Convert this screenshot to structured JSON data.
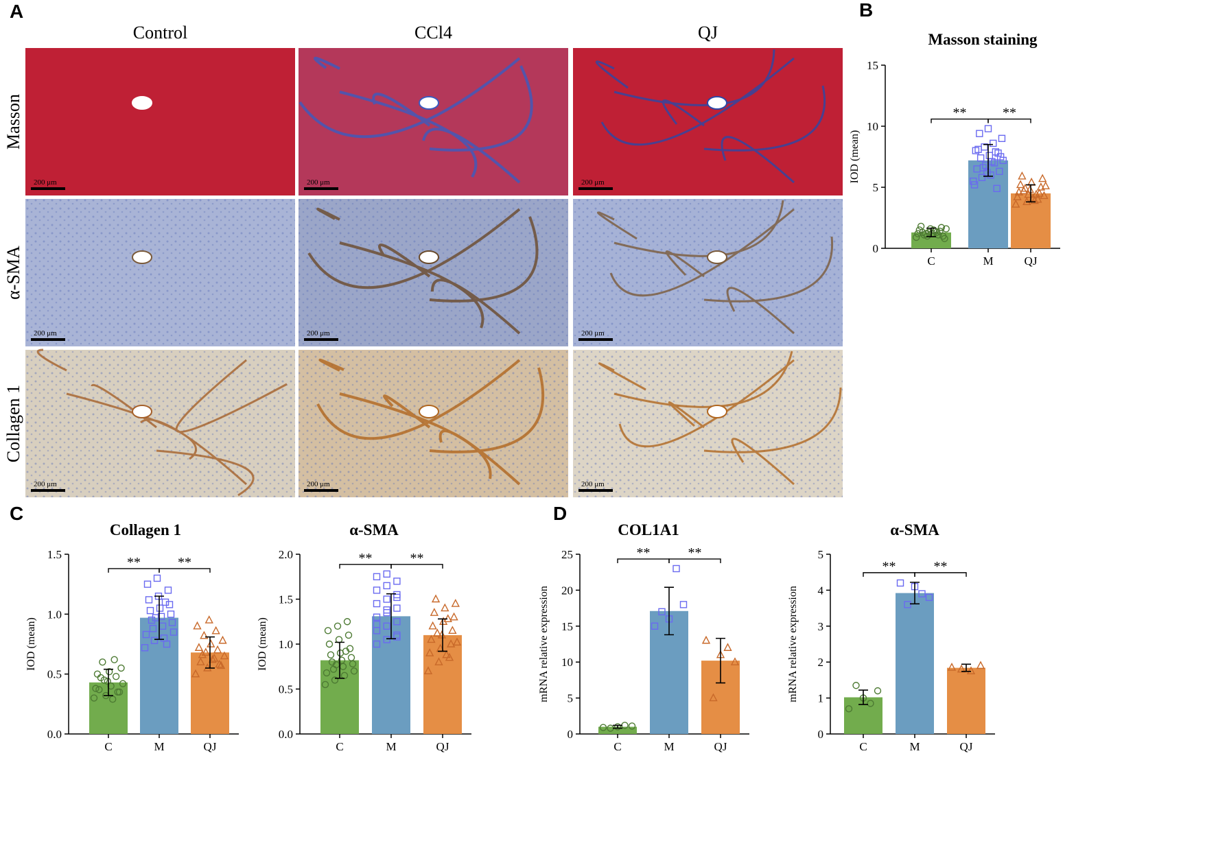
{
  "panel_labels": [
    "A",
    "B",
    "C",
    "D"
  ],
  "panel_a": {
    "columns": [
      "Control",
      "CCl4",
      "QJ"
    ],
    "rows": [
      "Masson",
      "α-SMA",
      "Collagen 1"
    ],
    "scale_bar": "200 μm"
  },
  "chart_data": [
    {
      "type": "bar",
      "title": "Masson staining",
      "y_label": "IOD (mean)",
      "categories": [
        "C",
        "M",
        "QJ"
      ],
      "values": [
        1.3,
        7.2,
        4.5
      ],
      "errors": [
        0.35,
        1.3,
        0.7
      ],
      "points": [
        [
          0.9,
          1.0,
          1.1,
          1.2,
          1.3,
          1.4,
          1.5,
          1.6,
          1.7,
          1.8,
          1.2,
          1.0,
          1.3,
          1.5,
          0.8,
          1.1,
          1.4,
          1.6,
          1.2,
          1.3
        ],
        [
          5.5,
          5.8,
          6.0,
          6.3,
          6.5,
          6.8,
          7.0,
          7.2,
          7.4,
          7.6,
          7.8,
          8.0,
          8.3,
          8.6,
          9.0,
          9.4,
          9.8,
          4.9,
          5.2,
          6.6,
          7.1,
          7.5,
          8.1,
          6.2,
          7.9
        ],
        [
          3.6,
          3.8,
          4.0,
          4.2,
          4.4,
          4.5,
          4.6,
          4.8,
          5.0,
          5.2,
          5.4,
          5.7,
          5.9,
          4.1,
          4.3,
          4.7,
          3.9,
          5.1,
          4.9,
          4.4
        ]
      ],
      "colors": [
        "#72ac4d",
        "#6b9dc0",
        "#e58e45"
      ],
      "point_colors": [
        "#4d7a33",
        "#6a6af0",
        "#c8692a"
      ],
      "markers": [
        "circle",
        "square",
        "triangle"
      ],
      "significance": [
        "**",
        "**"
      ],
      "ylim": [
        0,
        15
      ],
      "yticks": [
        0,
        5,
        10,
        15
      ]
    },
    {
      "type": "bar",
      "title": "Collagen 1",
      "y_label": "IOD (mean)",
      "categories": [
        "C",
        "M",
        "QJ"
      ],
      "values": [
        0.43,
        0.97,
        0.68
      ],
      "errors": [
        0.11,
        0.18,
        0.13
      ],
      "points": [
        [
          0.3,
          0.32,
          0.35,
          0.37,
          0.4,
          0.42,
          0.45,
          0.48,
          0.5,
          0.52,
          0.55,
          0.6,
          0.62,
          0.38,
          0.44,
          0.35,
          0.47,
          0.29
        ],
        [
          0.72,
          0.78,
          0.8,
          0.85,
          0.88,
          0.9,
          0.93,
          0.95,
          0.98,
          1.0,
          1.03,
          1.05,
          1.08,
          1.12,
          1.15,
          1.2,
          1.25,
          1.3,
          0.75,
          0.83,
          0.97,
          1.1
        ],
        [
          0.5,
          0.55,
          0.58,
          0.6,
          0.62,
          0.65,
          0.68,
          0.7,
          0.72,
          0.75,
          0.78,
          0.82,
          0.86,
          0.9,
          0.95,
          0.57,
          0.66,
          0.63
        ]
      ],
      "colors": [
        "#72ac4d",
        "#6b9dc0",
        "#e58e45"
      ],
      "point_colors": [
        "#4d7a33",
        "#6a6af0",
        "#c8692a"
      ],
      "markers": [
        "circle",
        "square",
        "triangle"
      ],
      "significance": [
        "**",
        "**"
      ],
      "ylim": [
        0,
        1.5
      ],
      "yticks": [
        {
          "value": 0,
          "label": "0.0"
        },
        0.5,
        {
          "value": 1,
          "label": "1.0"
        },
        1.5
      ]
    },
    {
      "type": "bar",
      "title": "α-SMA",
      "y_label": "IOD (mean)",
      "categories": [
        "C",
        "M",
        "QJ"
      ],
      "values": [
        0.82,
        1.31,
        1.1
      ],
      "errors": [
        0.2,
        0.25,
        0.18
      ],
      "points": [
        [
          0.55,
          0.6,
          0.65,
          0.7,
          0.72,
          0.75,
          0.78,
          0.8,
          0.82,
          0.85,
          0.88,
          0.9,
          0.95,
          1.0,
          1.05,
          1.1,
          1.15,
          1.2,
          1.25,
          0.68,
          0.77,
          0.92
        ],
        [
          1.0,
          1.05,
          1.1,
          1.15,
          1.2,
          1.25,
          1.3,
          1.35,
          1.4,
          1.45,
          1.5,
          1.55,
          1.6,
          1.65,
          1.7,
          1.75,
          1.78,
          1.08,
          1.22,
          1.38,
          1.52
        ],
        [
          0.7,
          0.8,
          0.85,
          0.9,
          0.95,
          1.0,
          1.05,
          1.1,
          1.15,
          1.2,
          1.25,
          1.3,
          1.35,
          1.4,
          1.45,
          1.5,
          0.88,
          1.02,
          1.12,
          1.28
        ]
      ],
      "colors": [
        "#72ac4d",
        "#6b9dc0",
        "#e58e45"
      ],
      "point_colors": [
        "#4d7a33",
        "#6a6af0",
        "#c8692a"
      ],
      "markers": [
        "circle",
        "square",
        "triangle"
      ],
      "significance": [
        "**",
        "**"
      ],
      "ylim": [
        0,
        2
      ],
      "yticks": [
        {
          "value": 0,
          "label": "0.0"
        },
        0.5,
        {
          "value": 1,
          "label": "1.0"
        },
        1.5,
        {
          "value": 2,
          "label": "2.0"
        }
      ]
    },
    {
      "type": "bar",
      "title": "COL1A1",
      "y_label": "mRNA relative expression",
      "categories": [
        "C",
        "M",
        "QJ"
      ],
      "values": [
        1.0,
        17.1,
        10.2
      ],
      "errors": [
        0.2,
        3.3,
        3.1
      ],
      "points": [
        [
          0.9,
          1.0,
          1.1,
          0.8,
          1.2
        ],
        [
          15,
          16,
          18,
          17,
          23
        ],
        [
          13,
          11,
          10,
          5,
          12
        ]
      ],
      "colors": [
        "#72ac4d",
        "#6b9dc0",
        "#e58e45"
      ],
      "point_colors": [
        "#4d7a33",
        "#6a6af0",
        "#c8692a"
      ],
      "markers": [
        "circle",
        "square",
        "triangle"
      ],
      "significance": [
        "**",
        "**"
      ],
      "ylim": [
        0,
        25
      ],
      "yticks": [
        0,
        5,
        10,
        15,
        20,
        25
      ]
    },
    {
      "type": "bar",
      "title": "α-SMA",
      "y_label": "mRNA relative expression",
      "categories": [
        "C",
        "M",
        "QJ"
      ],
      "values": [
        1.02,
        3.92,
        1.84
      ],
      "errors": [
        0.2,
        0.3,
        0.1
      ],
      "points": [
        [
          0.7,
          1.0,
          1.2,
          1.35,
          0.85
        ],
        [
          4.2,
          4.1,
          3.8,
          3.6,
          3.9
        ],
        [
          1.85,
          1.9,
          1.75,
          1.8
        ]
      ],
      "colors": [
        "#72ac4d",
        "#6b9dc0",
        "#e58e45"
      ],
      "point_colors": [
        "#4d7a33",
        "#6a6af0",
        "#c8692a"
      ],
      "markers": [
        "circle",
        "square",
        "triangle"
      ],
      "significance": [
        "**",
        "**"
      ],
      "ylim": [
        0,
        5
      ],
      "yticks": [
        0,
        1,
        2,
        3,
        4,
        5
      ]
    }
  ]
}
